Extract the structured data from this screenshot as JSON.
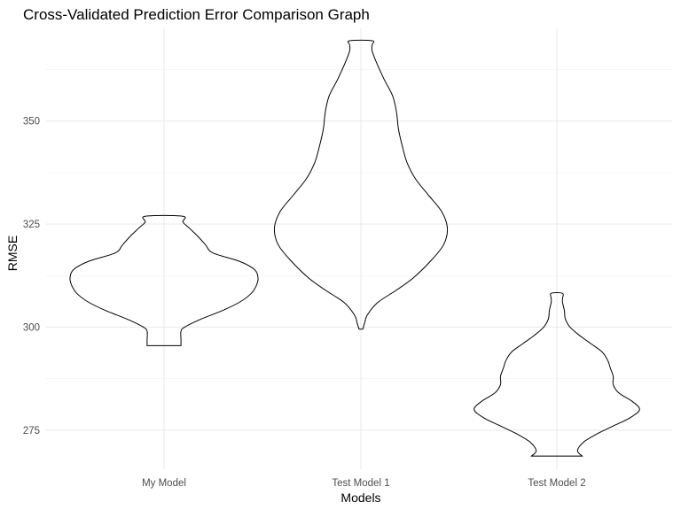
{
  "chart_data": {
    "type": "violin",
    "title": "Cross-Validated Prediction Error Comparison Graph",
    "xlabel": "Models",
    "ylabel": "RMSE",
    "ylim": [
      265.5,
      372.5
    ],
    "yticks": [
      275,
      300,
      325,
      350
    ],
    "y_minor_ticks": [
      287.5,
      312.5,
      337.5,
      362.5
    ],
    "grid": true,
    "categories": [
      "My Model",
      "Test Model 1",
      "Test Model 2"
    ],
    "series": [
      {
        "category": "My Model",
        "min": 295.5,
        "max": 326.9,
        "profile": [
          [
            295.5,
            0.18
          ],
          [
            297,
            0.18
          ],
          [
            299,
            0.18
          ],
          [
            300,
            0.22
          ],
          [
            302,
            0.4
          ],
          [
            304,
            0.62
          ],
          [
            306,
            0.8
          ],
          [
            308,
            0.92
          ],
          [
            310,
            0.98
          ],
          [
            312,
            1.0
          ],
          [
            314,
            0.96
          ],
          [
            316,
            0.8
          ],
          [
            318,
            0.52
          ],
          [
            320,
            0.44
          ],
          [
            322,
            0.36
          ],
          [
            324,
            0.27
          ],
          [
            325.5,
            0.2
          ],
          [
            326.9,
            0.2
          ]
        ]
      },
      {
        "category": "Test Model 1",
        "min": 299.5,
        "max": 369.5,
        "profile": [
          [
            299.5,
            0.02
          ],
          [
            301,
            0.04
          ],
          [
            303,
            0.07
          ],
          [
            306,
            0.18
          ],
          [
            309,
            0.38
          ],
          [
            312,
            0.56
          ],
          [
            316,
            0.74
          ],
          [
            320,
            0.88
          ],
          [
            324,
            0.92
          ],
          [
            328,
            0.86
          ],
          [
            332,
            0.72
          ],
          [
            336,
            0.58
          ],
          [
            340,
            0.49
          ],
          [
            344,
            0.44
          ],
          [
            348,
            0.4
          ],
          [
            352,
            0.38
          ],
          [
            356,
            0.34
          ],
          [
            360,
            0.25
          ],
          [
            364,
            0.17
          ],
          [
            367,
            0.12
          ],
          [
            368.5,
            0.12
          ],
          [
            369.5,
            0.12
          ]
        ]
      },
      {
        "category": "Test Model 2",
        "min": 268.7,
        "max": 308.2,
        "profile": [
          [
            268.7,
            0.27
          ],
          [
            270,
            0.22
          ],
          [
            272,
            0.28
          ],
          [
            274,
            0.42
          ],
          [
            276,
            0.6
          ],
          [
            278,
            0.78
          ],
          [
            280,
            0.88
          ],
          [
            282,
            0.8
          ],
          [
            284,
            0.66
          ],
          [
            286,
            0.6
          ],
          [
            288,
            0.6
          ],
          [
            290,
            0.57
          ],
          [
            292,
            0.54
          ],
          [
            294,
            0.48
          ],
          [
            296,
            0.36
          ],
          [
            298,
            0.24
          ],
          [
            300,
            0.14
          ],
          [
            302,
            0.09
          ],
          [
            304,
            0.08
          ],
          [
            306,
            0.06
          ],
          [
            307,
            0.06
          ],
          [
            308.2,
            0.06
          ]
        ]
      }
    ]
  }
}
